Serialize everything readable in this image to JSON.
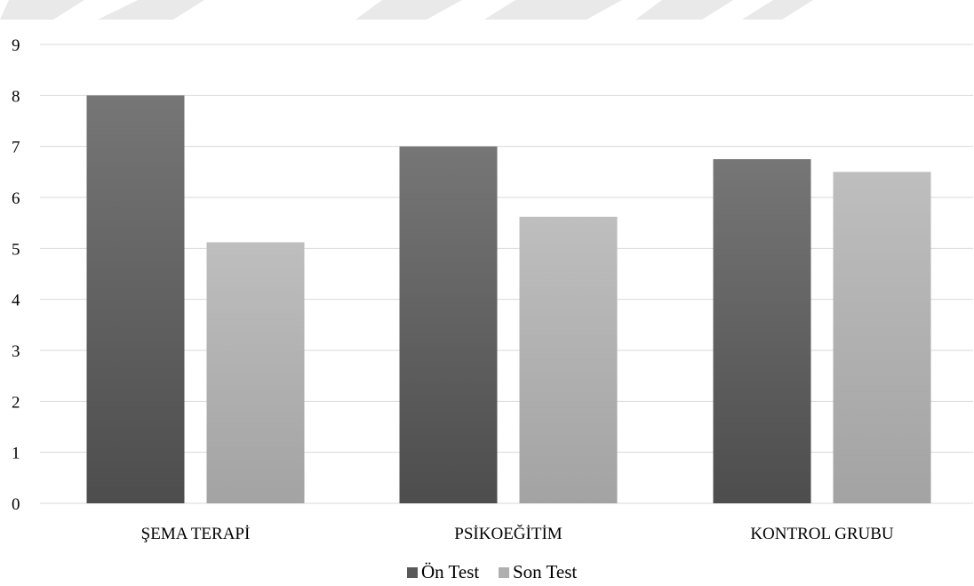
{
  "chart_data": {
    "type": "bar",
    "title": "",
    "xlabel": "",
    "ylabel": "",
    "categories": [
      "ŞEMA TERAPİ",
      "PSİKOEĞİTİM",
      "KONTROL GRUBU"
    ],
    "series": [
      {
        "name": "Ön Test",
        "values": [
          8.0,
          7.0,
          6.75
        ],
        "color": "#595959"
      },
      {
        "name": "Son Test",
        "values": [
          5.12,
          5.62,
          6.5
        ],
        "color": "#a8a8a8"
      }
    ],
    "ylim": [
      0,
      9
    ],
    "yticks": [
      "0",
      "1",
      "2",
      "3",
      "4",
      "5",
      "6",
      "7",
      "8",
      "9"
    ],
    "grid": true,
    "legend": "bottom-center"
  }
}
